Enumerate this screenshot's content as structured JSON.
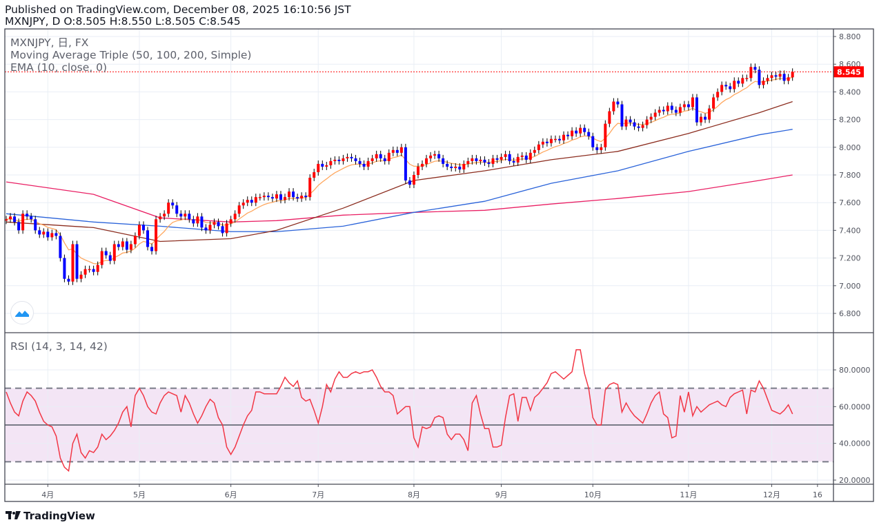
{
  "header": {
    "published": "Published on TradingView.com, December 08, 2025 16:10:56 JST",
    "ohlc_line": "MXNJPY, D O:8.505 H:8.550 L:8.505 C:8.545"
  },
  "legend": {
    "symbol": "MXNJPY, 日, FX",
    "ma_triple": "Moving Average Triple (50, 100, 200, Simple)",
    "ema": "EMA (10, close, 0)",
    "rsi": "RSI (14, 3, 14, 42)"
  },
  "brand": "TradingView",
  "last_price_label": "8.545",
  "colors": {
    "up": "#ff0000",
    "down": "#0000ff",
    "ema10": "#ffa75e",
    "sma50": "#8b2c1e",
    "sma100": "#2962d9",
    "sma200": "#e91e63",
    "rsi": "#f23645",
    "rsi_band": "#f3e5f5",
    "last_price": "#ff0000"
  },
  "chart_data": {
    "type": "candlestick",
    "symbol": "MXNJPY",
    "interval": "D",
    "price_axis": {
      "ticks": [
        "8.800",
        "8.600",
        "8.400",
        "8.200",
        "8.000",
        "7.800",
        "7.600",
        "7.400",
        "7.200",
        "7.000",
        "6.800"
      ],
      "range": [
        6.75,
        8.85
      ]
    },
    "rsi_axis": {
      "ticks": [
        "80.0000",
        "60.0000",
        "40.0000",
        "20.0000"
      ],
      "range": [
        17,
        100
      ],
      "bands": [
        30,
        50,
        70
      ]
    },
    "time_axis": {
      "ticks": [
        "4月",
        "5月",
        "6月",
        "7月",
        "8月",
        "9月",
        "10月",
        "11月",
        "12月",
        "16"
      ]
    },
    "last_price": 8.545,
    "first_open": 7.47,
    "grid": true,
    "candles_fields": [
      "date",
      "close",
      "rsi"
    ],
    "candles": [
      [
        "2025-03-18",
        7.48,
        68
      ],
      [
        "2025-03-19",
        7.5,
        62
      ],
      [
        "2025-03-20",
        7.46,
        57
      ],
      [
        "2025-03-21",
        7.4,
        55
      ],
      [
        "2025-03-24",
        7.52,
        63
      ],
      [
        "2025-03-25",
        7.5,
        68
      ],
      [
        "2025-03-26",
        7.48,
        66
      ],
      [
        "2025-03-27",
        7.4,
        63
      ],
      [
        "2025-03-28",
        7.37,
        57
      ],
      [
        "2025-03-31",
        7.39,
        52
      ],
      [
        "2025-04-01",
        7.35,
        50
      ],
      [
        "2025-04-02",
        7.38,
        49
      ],
      [
        "2025-04-03",
        7.36,
        44
      ],
      [
        "2025-04-04",
        7.2,
        32
      ],
      [
        "2025-04-07",
        7.05,
        27
      ],
      [
        "2025-04-08",
        7.03,
        25
      ],
      [
        "2025-04-09",
        7.3,
        40
      ],
      [
        "2025-04-10",
        7.05,
        45
      ],
      [
        "2025-04-11",
        7.08,
        35
      ],
      [
        "2025-04-14",
        7.12,
        32
      ],
      [
        "2025-04-15",
        7.12,
        36
      ],
      [
        "2025-04-16",
        7.1,
        35
      ],
      [
        "2025-04-17",
        7.15,
        38
      ],
      [
        "2025-04-18",
        7.25,
        45
      ],
      [
        "2025-04-21",
        7.22,
        42
      ],
      [
        "2025-04-22",
        7.18,
        44
      ],
      [
        "2025-04-23",
        7.3,
        47
      ],
      [
        "2025-04-24",
        7.28,
        51
      ],
      [
        "2025-04-25",
        7.32,
        57
      ],
      [
        "2025-04-28",
        7.26,
        60
      ],
      [
        "2025-04-29",
        7.3,
        49
      ],
      [
        "2025-04-30",
        7.36,
        66
      ],
      [
        "2025-05-01",
        7.44,
        70
      ],
      [
        "2025-05-02",
        7.4,
        66
      ],
      [
        "2025-05-05",
        7.28,
        60
      ],
      [
        "2025-05-06",
        7.25,
        57
      ],
      [
        "2025-05-07",
        7.48,
        56
      ],
      [
        "2025-05-08",
        7.5,
        62
      ],
      [
        "2025-05-09",
        7.52,
        66
      ],
      [
        "2025-05-12",
        7.6,
        68
      ],
      [
        "2025-05-13",
        7.58,
        67
      ],
      [
        "2025-05-14",
        7.52,
        66
      ],
      [
        "2025-05-15",
        7.5,
        57
      ],
      [
        "2025-05-16",
        7.52,
        66
      ],
      [
        "2025-05-19",
        7.48,
        62
      ],
      [
        "2025-05-20",
        7.45,
        56
      ],
      [
        "2025-05-21",
        7.5,
        51
      ],
      [
        "2025-05-22",
        7.42,
        55
      ],
      [
        "2025-05-23",
        7.4,
        60
      ],
      [
        "2025-05-26",
        7.44,
        64
      ],
      [
        "2025-05-27",
        7.46,
        62
      ],
      [
        "2025-05-28",
        7.43,
        54
      ],
      [
        "2025-05-29",
        7.38,
        50
      ],
      [
        "2025-05-30",
        7.45,
        38
      ],
      [
        "2025-06-02",
        7.48,
        34
      ],
      [
        "2025-06-03",
        7.52,
        38
      ],
      [
        "2025-06-04",
        7.58,
        44
      ],
      [
        "2025-06-05",
        7.6,
        50
      ],
      [
        "2025-06-06",
        7.62,
        55
      ],
      [
        "2025-06-09",
        7.6,
        58
      ],
      [
        "2025-06-10",
        7.64,
        68
      ],
      [
        "2025-06-11",
        7.64,
        68
      ],
      [
        "2025-06-12",
        7.65,
        67
      ],
      [
        "2025-06-13",
        7.64,
        67
      ],
      [
        "2025-06-16",
        7.63,
        67
      ],
      [
        "2025-06-17",
        7.66,
        67
      ],
      [
        "2025-06-18",
        7.62,
        71
      ],
      [
        "2025-06-19",
        7.64,
        76
      ],
      [
        "2025-06-20",
        7.68,
        73
      ],
      [
        "2025-06-23",
        7.64,
        71
      ],
      [
        "2025-06-24",
        7.63,
        74
      ],
      [
        "2025-06-25",
        7.65,
        65
      ],
      [
        "2025-06-26",
        7.64,
        63
      ],
      [
        "2025-06-27",
        7.78,
        64
      ],
      [
        "2025-06-30",
        7.82,
        58
      ],
      [
        "2025-07-01",
        7.88,
        51
      ],
      [
        "2025-07-02",
        7.86,
        60
      ],
      [
        "2025-07-03",
        7.87,
        72
      ],
      [
        "2025-07-04",
        7.9,
        68
      ],
      [
        "2025-07-07",
        7.91,
        75
      ],
      [
        "2025-07-08",
        7.9,
        79
      ],
      [
        "2025-07-09",
        7.92,
        76
      ],
      [
        "2025-07-10",
        7.93,
        76
      ],
      [
        "2025-07-11",
        7.92,
        78
      ],
      [
        "2025-07-14",
        7.9,
        79
      ],
      [
        "2025-07-15",
        7.88,
        78
      ],
      [
        "2025-07-16",
        7.86,
        79
      ],
      [
        "2025-07-17",
        7.9,
        79
      ],
      [
        "2025-07-18",
        7.92,
        80
      ],
      [
        "2025-07-21",
        7.95,
        76
      ],
      [
        "2025-07-22",
        7.92,
        71
      ],
      [
        "2025-07-23",
        7.9,
        68
      ],
      [
        "2025-07-24",
        7.96,
        68
      ],
      [
        "2025-07-25",
        7.98,
        66
      ],
      [
        "2025-07-28",
        7.96,
        56
      ],
      [
        "2025-07-29",
        8.0,
        58
      ],
      [
        "2025-07-30",
        7.76,
        60
      ],
      [
        "2025-07-31",
        7.73,
        60
      ],
      [
        "2025-08-01",
        7.8,
        43
      ],
      [
        "2025-08-04",
        7.86,
        38
      ],
      [
        "2025-08-05",
        7.88,
        49
      ],
      [
        "2025-08-06",
        7.92,
        48
      ],
      [
        "2025-08-07",
        7.94,
        49
      ],
      [
        "2025-08-08",
        7.95,
        54
      ],
      [
        "2025-08-11",
        7.92,
        55
      ],
      [
        "2025-08-12",
        7.88,
        54
      ],
      [
        "2025-08-13",
        7.86,
        45
      ],
      [
        "2025-08-14",
        7.85,
        42
      ],
      [
        "2025-08-15",
        7.86,
        45
      ],
      [
        "2025-08-18",
        7.84,
        45
      ],
      [
        "2025-08-19",
        7.88,
        42
      ],
      [
        "2025-08-20",
        7.9,
        36
      ],
      [
        "2025-08-21",
        7.92,
        62
      ],
      [
        "2025-08-22",
        7.9,
        66
      ],
      [
        "2025-08-25",
        7.91,
        56
      ],
      [
        "2025-08-26",
        7.89,
        48
      ],
      [
        "2025-08-27",
        7.88,
        48
      ],
      [
        "2025-08-28",
        7.92,
        38
      ],
      [
        "2025-08-29",
        7.91,
        38
      ],
      [
        "2025-09-01",
        7.93,
        39
      ],
      [
        "2025-09-02",
        7.95,
        54
      ],
      [
        "2025-09-03",
        7.9,
        66
      ],
      [
        "2025-09-04",
        7.89,
        67
      ],
      [
        "2025-09-05",
        7.93,
        52
      ],
      [
        "2025-09-08",
        7.94,
        65
      ],
      [
        "2025-09-09",
        7.91,
        65
      ],
      [
        "2025-09-10",
        7.96,
        58
      ],
      [
        "2025-09-11",
        7.98,
        65
      ],
      [
        "2025-09-12",
        8.02,
        67
      ],
      [
        "2025-09-15",
        8.04,
        70
      ],
      [
        "2025-09-16",
        8.03,
        73
      ],
      [
        "2025-09-17",
        8.06,
        78
      ],
      [
        "2025-09-18",
        8.06,
        79
      ],
      [
        "2025-09-19",
        8.05,
        77
      ],
      [
        "2025-09-22",
        8.09,
        75
      ],
      [
        "2025-09-23",
        8.08,
        77
      ],
      [
        "2025-09-24",
        8.12,
        79
      ],
      [
        "2025-09-25",
        8.1,
        91
      ],
      [
        "2025-09-26",
        8.14,
        91
      ],
      [
        "2025-09-29",
        8.11,
        78
      ],
      [
        "2025-09-30",
        8.08,
        70
      ],
      [
        "2025-10-01",
        8.0,
        54
      ],
      [
        "2025-10-02",
        7.98,
        50
      ],
      [
        "2025-10-03",
        8.0,
        50
      ],
      [
        "2025-10-06",
        8.17,
        69
      ],
      [
        "2025-10-07",
        8.26,
        72
      ],
      [
        "2025-10-08",
        8.33,
        73
      ],
      [
        "2025-10-09",
        8.31,
        72
      ],
      [
        "2025-10-10",
        8.15,
        57
      ],
      [
        "2025-10-13",
        8.2,
        62
      ],
      [
        "2025-10-14",
        8.18,
        58
      ],
      [
        "2025-10-15",
        8.15,
        55
      ],
      [
        "2025-10-16",
        8.14,
        53
      ],
      [
        "2025-10-17",
        8.16,
        51
      ],
      [
        "2025-10-20",
        8.2,
        56
      ],
      [
        "2025-10-21",
        8.22,
        62
      ],
      [
        "2025-10-22",
        8.25,
        66
      ],
      [
        "2025-10-23",
        8.27,
        68
      ],
      [
        "2025-10-24",
        8.26,
        56
      ],
      [
        "2025-10-27",
        8.3,
        54
      ],
      [
        "2025-10-28",
        8.27,
        43
      ],
      [
        "2025-10-29",
        8.25,
        44
      ],
      [
        "2025-10-30",
        8.29,
        66
      ],
      [
        "2025-10-31",
        8.31,
        57
      ],
      [
        "2025-11-03",
        8.29,
        68
      ],
      [
        "2025-11-04",
        8.36,
        55
      ],
      [
        "2025-11-05",
        8.18,
        60
      ],
      [
        "2025-11-06",
        8.22,
        57
      ],
      [
        "2025-11-07",
        8.2,
        59
      ],
      [
        "2025-11-10",
        8.28,
        61
      ],
      [
        "2025-11-11",
        8.36,
        62
      ],
      [
        "2025-11-12",
        8.4,
        63
      ],
      [
        "2025-11-13",
        8.45,
        61
      ],
      [
        "2025-11-14",
        8.44,
        60
      ],
      [
        "2025-11-17",
        8.42,
        65
      ],
      [
        "2025-11-18",
        8.48,
        67
      ],
      [
        "2025-11-19",
        8.46,
        68
      ],
      [
        "2025-11-20",
        8.5,
        69
      ],
      [
        "2025-11-21",
        8.5,
        56
      ],
      [
        "2025-11-24",
        8.58,
        69
      ],
      [
        "2025-11-25",
        8.56,
        68
      ],
      [
        "2025-11-26",
        8.45,
        74
      ],
      [
        "2025-11-27",
        8.48,
        70
      ],
      [
        "2025-11-28",
        8.5,
        64
      ],
      [
        "2025-12-01",
        8.52,
        58
      ],
      [
        "2025-12-02",
        8.51,
        57
      ],
      [
        "2025-12-03",
        8.53,
        56
      ],
      [
        "2025-12-04",
        8.48,
        58
      ],
      [
        "2025-12-05",
        8.505,
        61
      ],
      [
        "2025-12-08",
        8.545,
        56
      ]
    ],
    "sma50": [
      [
        "2025-03-18",
        7.46
      ],
      [
        "2025-04-16",
        7.42
      ],
      [
        "2025-05-08",
        7.32
      ],
      [
        "2025-06-02",
        7.34
      ],
      [
        "2025-06-17",
        7.4
      ],
      [
        "2025-07-09",
        7.56
      ],
      [
        "2025-08-01",
        7.76
      ],
      [
        "2025-08-26",
        7.83
      ],
      [
        "2025-09-17",
        7.91
      ],
      [
        "2025-10-09",
        7.97
      ],
      [
        "2025-11-03",
        8.1
      ],
      [
        "2025-11-26",
        8.25
      ],
      [
        "2025-12-08",
        8.33
      ]
    ],
    "sma100": [
      [
        "2025-03-18",
        7.52
      ],
      [
        "2025-04-16",
        7.46
      ],
      [
        "2025-05-08",
        7.43
      ],
      [
        "2025-06-02",
        7.39
      ],
      [
        "2025-06-17",
        7.39
      ],
      [
        "2025-07-09",
        7.43
      ],
      [
        "2025-08-01",
        7.53
      ],
      [
        "2025-08-26",
        7.61
      ],
      [
        "2025-09-17",
        7.74
      ],
      [
        "2025-10-09",
        7.83
      ],
      [
        "2025-11-03",
        7.97
      ],
      [
        "2025-11-26",
        8.09
      ],
      [
        "2025-12-08",
        8.13
      ]
    ],
    "sma200": [
      [
        "2025-03-18",
        7.75
      ],
      [
        "2025-04-16",
        7.66
      ],
      [
        "2025-05-08",
        7.49
      ],
      [
        "2025-06-02",
        7.46
      ],
      [
        "2025-06-17",
        7.47
      ],
      [
        "2025-07-09",
        7.51
      ],
      [
        "2025-08-01",
        7.53
      ],
      [
        "2025-08-26",
        7.545
      ],
      [
        "2025-09-17",
        7.59
      ],
      [
        "2025-10-09",
        7.63
      ],
      [
        "2025-11-03",
        7.68
      ],
      [
        "2025-11-26",
        7.76
      ],
      [
        "2025-12-08",
        7.8
      ]
    ]
  }
}
